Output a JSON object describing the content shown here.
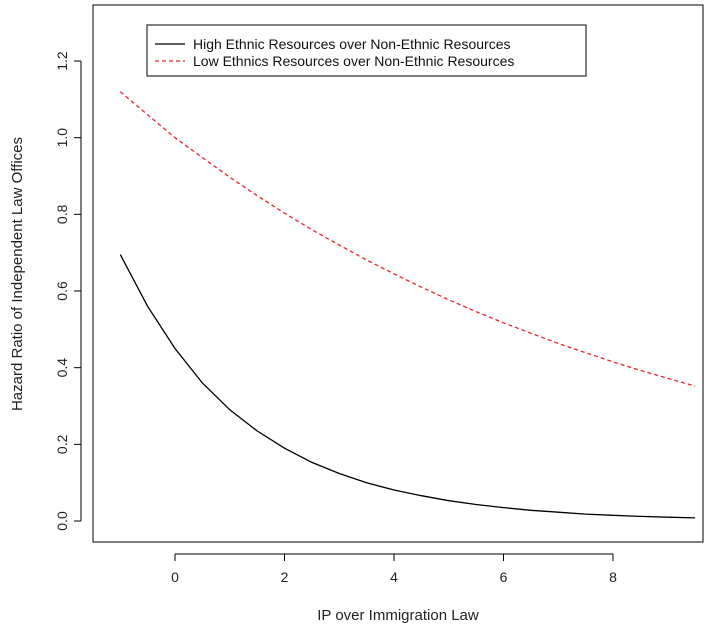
{
  "chart_data": {
    "type": "line",
    "xlabel": "IP over Immigration Law",
    "ylabel": "Hazard Ratio of Independent Law Offices",
    "xlim": [
      -1.1,
      9.6
    ],
    "ylim": [
      0.0,
      1.3
    ],
    "x_ticks": [
      "0",
      "2",
      "4",
      "6",
      "8"
    ],
    "y_ticks": [
      "0.0",
      "0.2",
      "0.4",
      "0.6",
      "0.8",
      "1.0",
      "1.2"
    ],
    "legend_position": "top-left",
    "grid": false,
    "series": [
      {
        "name": "High Ethnic Resources over Non-Ethnic Resources",
        "color": "#000000",
        "dash": "solid",
        "x": [
          -1,
          -0.5,
          0,
          0.5,
          1,
          1.5,
          2,
          2.5,
          3,
          3.5,
          4,
          4.5,
          5,
          5.5,
          6,
          6.5,
          7,
          7.5,
          8,
          8.5,
          9,
          9.5
        ],
        "y": [
          0.695,
          0.56,
          0.45,
          0.36,
          0.29,
          0.235,
          0.19,
          0.153,
          0.124,
          0.1,
          0.081,
          0.066,
          0.053,
          0.043,
          0.035,
          0.028,
          0.023,
          0.018,
          0.015,
          0.012,
          0.01,
          0.008
        ]
      },
      {
        "name": "Low Ethnics Resources over Non-Ethnic Resources",
        "color": "#e8232a",
        "dash": "dashed",
        "x": [
          -1,
          -0.5,
          0,
          0.5,
          1,
          1.5,
          2,
          2.5,
          3,
          3.5,
          4,
          4.5,
          5,
          5.5,
          6,
          6.5,
          7,
          7.5,
          8,
          8.5,
          9,
          9.5
        ],
        "y": [
          1.12,
          1.06,
          1.0,
          0.948,
          0.897,
          0.849,
          0.803,
          0.76,
          0.72,
          0.681,
          0.645,
          0.61,
          0.577,
          0.546,
          0.517,
          0.49,
          0.463,
          0.439,
          0.415,
          0.393,
          0.372,
          0.352
        ]
      }
    ]
  }
}
